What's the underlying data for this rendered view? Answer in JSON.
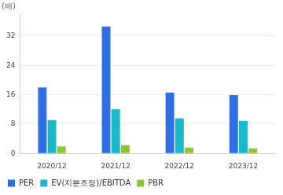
{
  "chart_data": {
    "type": "bar",
    "y_label": "(배)",
    "categories": [
      "2020/12",
      "2021/12",
      "2022/12",
      "2023/12"
    ],
    "series": [
      {
        "name": "PER",
        "color": "#2f6fdf",
        "values": [
          18.0,
          34.6,
          16.6,
          15.9
        ]
      },
      {
        "name": "EV(지분조정)/EBITDA",
        "color": "#1ab8c8",
        "values": [
          9.1,
          12.1,
          9.6,
          8.9
        ]
      },
      {
        "name": "PBR",
        "color": "#8cc43c",
        "values": [
          1.9,
          2.3,
          1.6,
          1.4
        ]
      }
    ],
    "ylim": [
      0,
      38
    ],
    "yticks": [
      0,
      8,
      16,
      24,
      32
    ],
    "grid": true,
    "legend": "bottom"
  }
}
